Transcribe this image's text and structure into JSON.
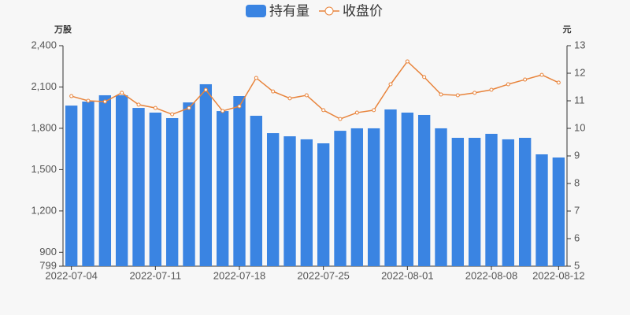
{
  "chart_data": {
    "type": "bar_line",
    "y_label": "万股",
    "y2_label": "元",
    "categories": [
      "2022-07-04",
      null,
      null,
      null,
      null,
      "2022-07-11",
      null,
      null,
      null,
      null,
      "2022-07-18",
      null,
      null,
      null,
      null,
      "2022-07-25",
      null,
      null,
      null,
      null,
      "2022-08-01",
      null,
      null,
      null,
      null,
      "2022-08-08",
      null,
      null,
      null,
      "2022-08-12"
    ],
    "series": [
      {
        "name": "持有量",
        "type": "bar",
        "color": "#3a84e2",
        "values": [
          1965,
          1994,
          2040,
          2040,
          1948,
          1914,
          1874,
          1988,
          2120,
          1925,
          2034,
          1891,
          1765,
          1742,
          1720,
          1691,
          1782,
          1800,
          1800,
          1937,
          1914,
          1897,
          1800,
          1731,
          1731,
          1760,
          1720,
          1731,
          1611,
          1588
        ]
      },
      {
        "name": "收盘价",
        "type": "line",
        "axis": "y2",
        "color": "#e8843c",
        "values": [
          11.17,
          11.0,
          10.97,
          11.29,
          10.86,
          10.74,
          10.51,
          10.74,
          11.4,
          10.63,
          10.8,
          11.83,
          11.34,
          11.09,
          11.2,
          10.66,
          10.34,
          10.57,
          10.66,
          11.6,
          12.43,
          11.86,
          11.23,
          11.2,
          11.29,
          11.4,
          11.6,
          11.77,
          11.94,
          11.66
        ]
      }
    ],
    "ylim": [
      799,
      2400
    ],
    "yticks": [
      799,
      900,
      {
        "value": 1200,
        "label": "1,200"
      },
      {
        "value": 1500,
        "label": "1,500"
      },
      {
        "value": 1800,
        "label": "1,800"
      },
      {
        "value": 2100,
        "label": "2,100"
      },
      {
        "value": 2400,
        "label": "2,400"
      }
    ],
    "y2lim": [
      5,
      13
    ],
    "y2ticks": [
      5,
      6,
      7,
      8,
      9,
      10,
      11,
      12,
      13
    ],
    "legend": "top"
  }
}
